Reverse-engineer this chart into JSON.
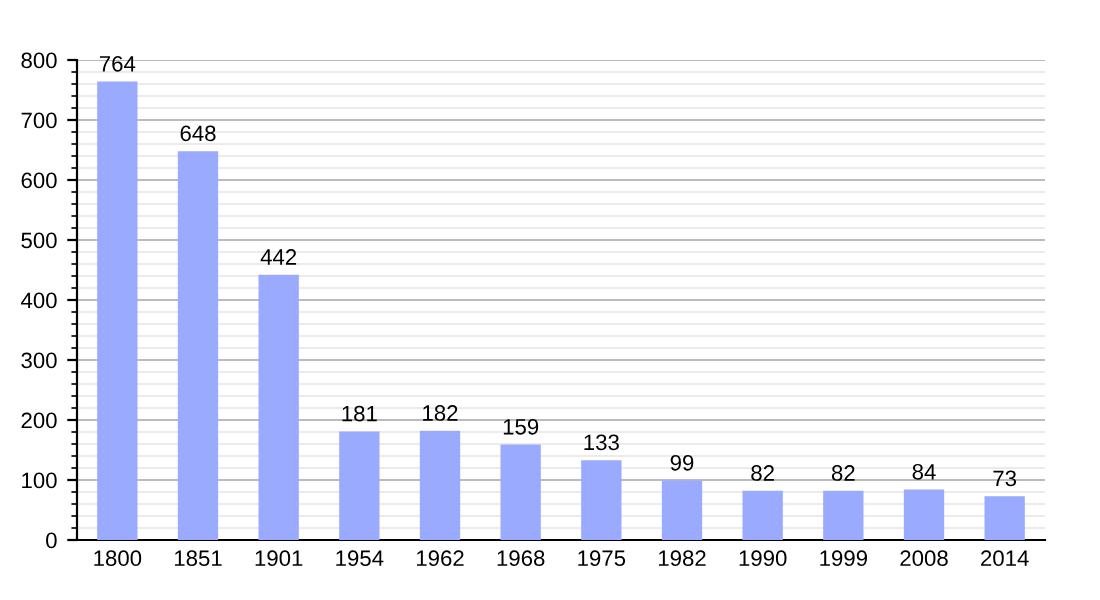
{
  "chart_data": {
    "type": "bar",
    "categories": [
      "1800",
      "1851",
      "1901",
      "1954",
      "1962",
      "1968",
      "1975",
      "1982",
      "1990",
      "1999",
      "2008",
      "2014"
    ],
    "values": [
      764,
      648,
      442,
      181,
      182,
      159,
      133,
      99,
      82,
      82,
      84,
      73
    ],
    "color": "#99aaff",
    "ylim": [
      0,
      800
    ],
    "yticks": [
      0,
      100,
      200,
      300,
      400,
      500,
      600,
      700,
      800
    ],
    "grid": "y",
    "data_labels": true
  }
}
